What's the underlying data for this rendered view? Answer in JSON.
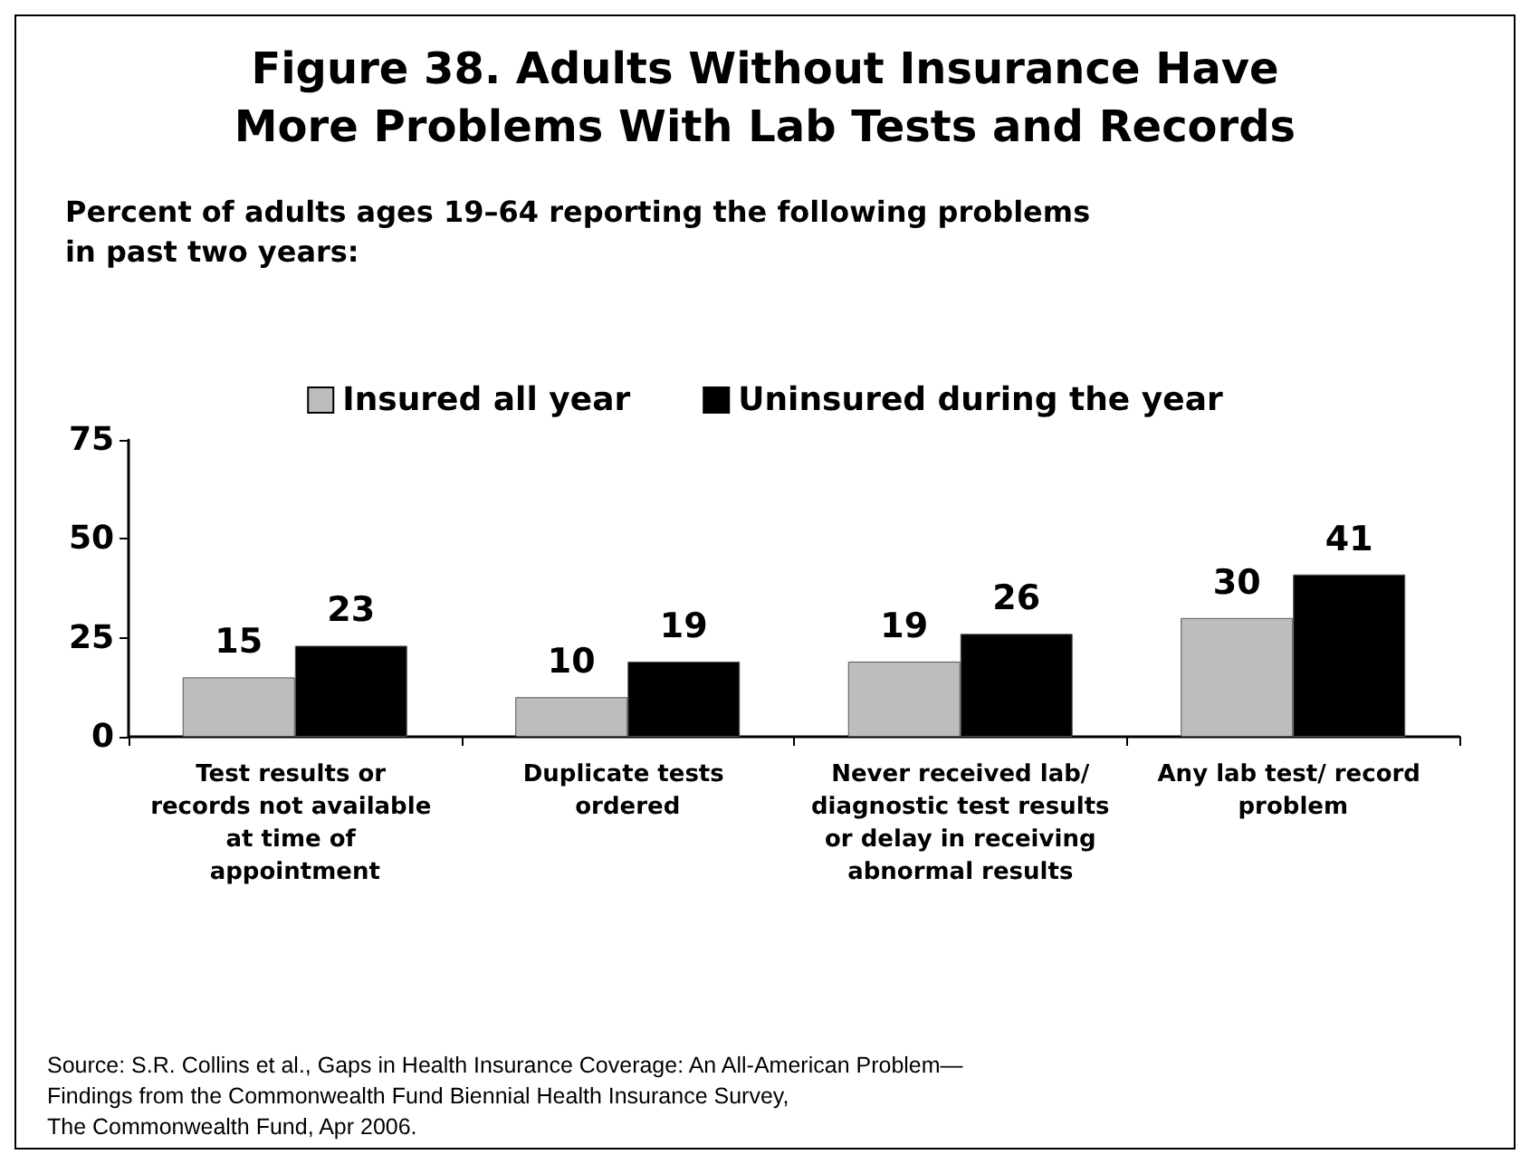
{
  "chart_data": {
    "type": "bar",
    "title": "Figure 38. Adults Without Insurance Have\nMore Problems With Lab Tests and Records",
    "subtitle": "Percent of adults ages 19–64 reporting the following problems\nin past two years:",
    "categories": [
      "Test results or records not available at time of appointment",
      "Duplicate tests ordered",
      "Never received lab/diagnostic test results or delay in receiving abnormal results",
      "Any lab test/ record problem"
    ],
    "series": [
      {
        "name": "Insured all year",
        "color": "#bdbdbd",
        "values": [
          15,
          10,
          19,
          30
        ]
      },
      {
        "name": "Uninsured during the year",
        "color": "#000000",
        "values": [
          23,
          19,
          26,
          41
        ]
      }
    ],
    "ylim": [
      0,
      75
    ],
    "yticks": [
      0,
      25,
      50,
      75
    ],
    "grid": false,
    "legend": "top",
    "data_labels": true,
    "annotations": [
      "Source: S.R. Collins et al., Gaps in Health Insurance Coverage: An All-American Problem—\nFindings from the Commonwealth Fund Biennial Health Insurance Survey,\nThe Commonwealth Fund, Apr 2006."
    ]
  }
}
